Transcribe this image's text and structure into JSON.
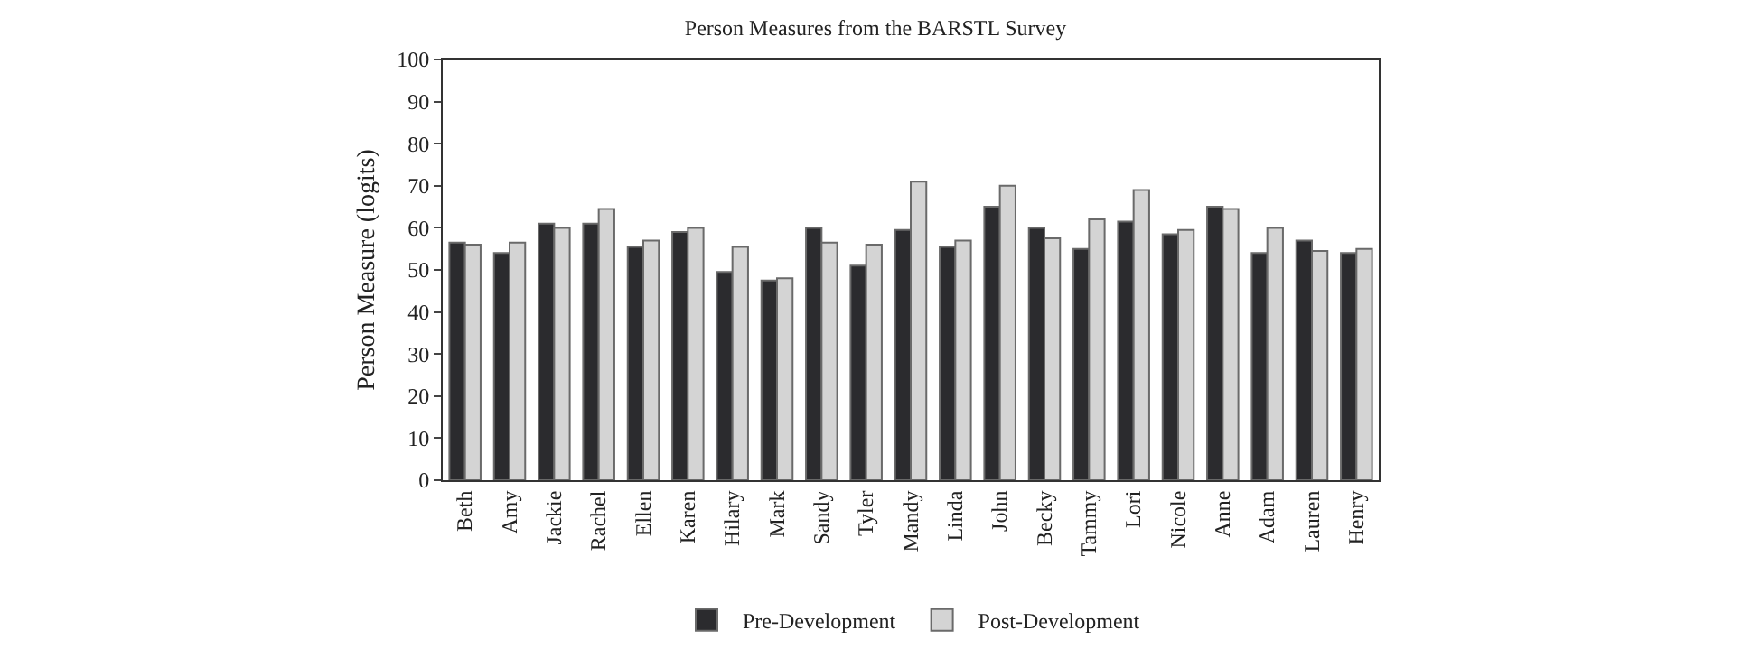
{
  "chart_data": {
    "type": "bar",
    "title": "Person Measures from the BARSTL Survey",
    "ylabel": "Person Measure (logits)",
    "categories": [
      "Beth",
      "Amy",
      "Jackie",
      "Rachel",
      "Ellen",
      "Karen",
      "Hilary",
      "Mark",
      "Sandy",
      "Tyler",
      "Mandy",
      "Linda",
      "John",
      "Becky",
      "Tammy",
      "Lori",
      "Nicole",
      "Anne",
      "Adam",
      "Lauren",
      "Henry"
    ],
    "series": [
      {
        "name": "Pre-Development",
        "color": "#2b2b2e",
        "values": [
          56.5,
          54,
          61,
          61,
          55.5,
          59,
          49.5,
          47.5,
          60,
          51,
          59.5,
          55.5,
          65,
          60,
          55,
          61.5,
          58.5,
          65,
          54,
          57,
          54
        ]
      },
      {
        "name": "Post-Development",
        "color": "#d4d4d4",
        "values": [
          56,
          56.5,
          60,
          64.5,
          57,
          60,
          55.5,
          48,
          56.5,
          56,
          71,
          57,
          70,
          57.5,
          62,
          69,
          59.5,
          64.5,
          60,
          54.5,
          55
        ]
      }
    ],
    "ylim": [
      0,
      100
    ],
    "yticks": [
      0,
      10,
      20,
      30,
      40,
      50,
      60,
      70,
      80,
      90,
      100
    ],
    "grid": false,
    "legend": "bottom"
  }
}
